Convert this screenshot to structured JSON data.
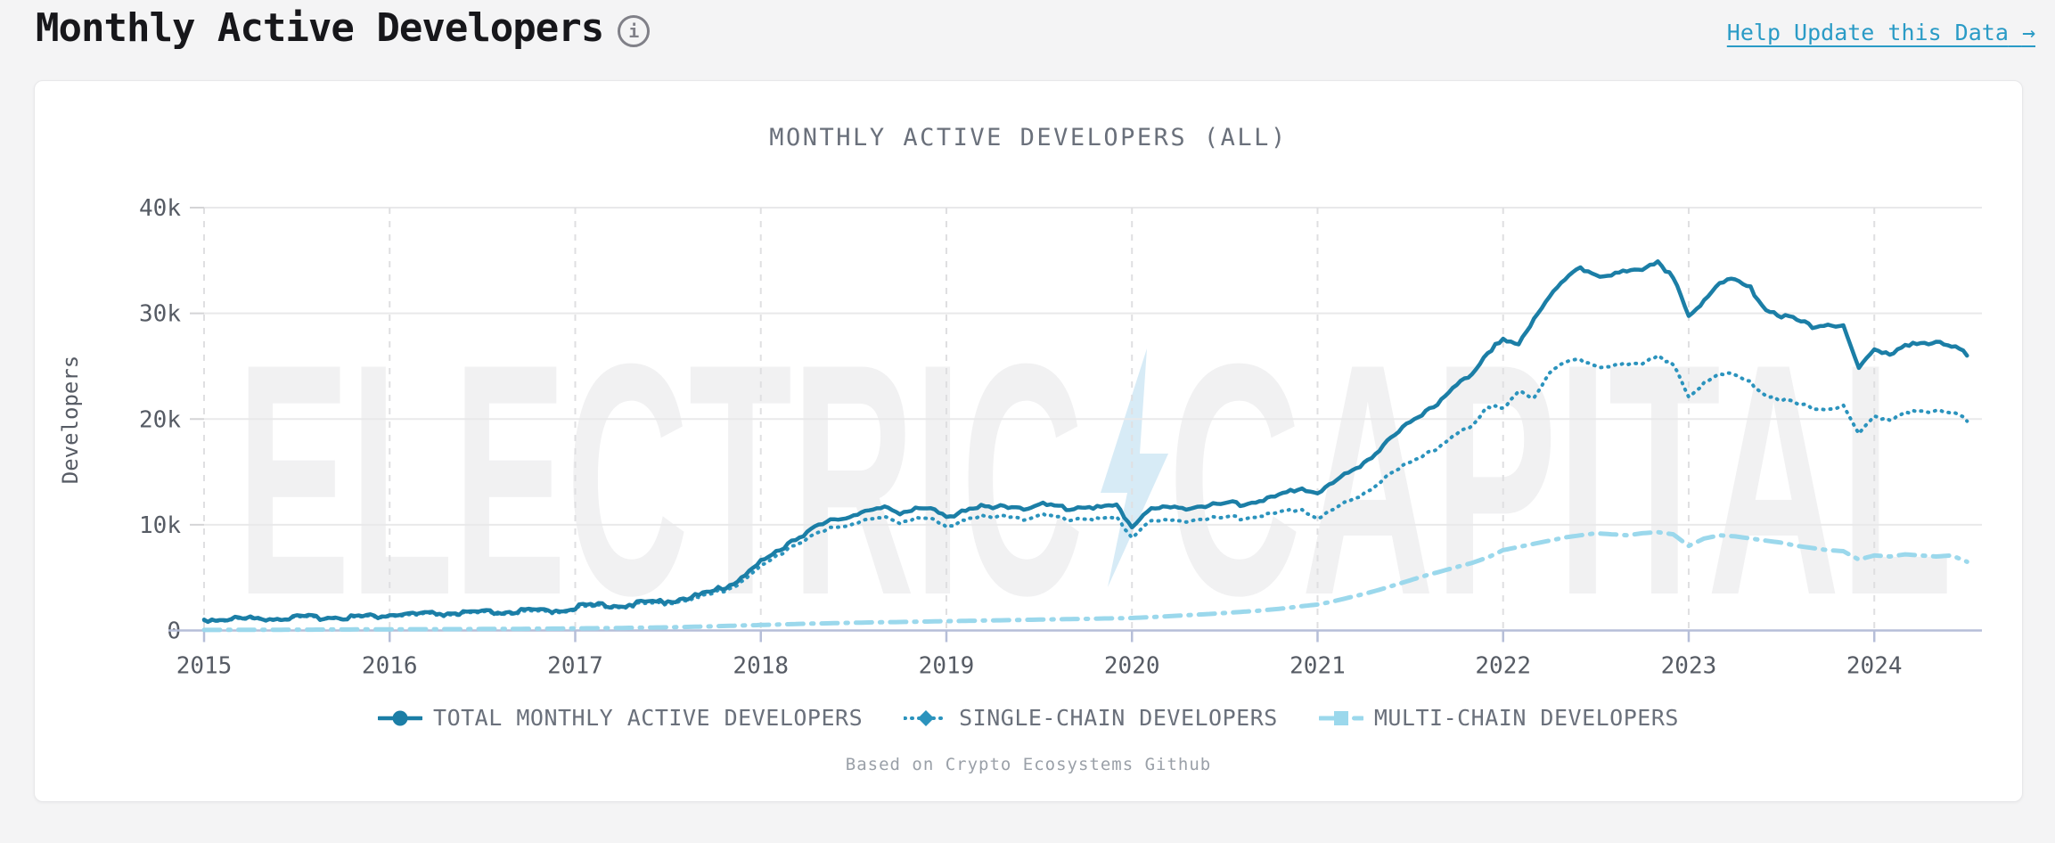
{
  "page": {
    "title": "Monthly Active Developers",
    "help_link": {
      "label": "Help Update this Data",
      "arrow": "→"
    }
  },
  "chart_data": {
    "type": "line",
    "title": "MONTHLY ACTIVE DEVELOPERS (ALL)",
    "ylabel": "Developers",
    "xlabel": "",
    "caption": "Based on Crypto Ecosystems Github",
    "watermark": {
      "left": "ELECTRIC",
      "right": "CAPITAL",
      "bolt": "lightning-bolt"
    },
    "legend_position": "bottom",
    "grid": {
      "horizontal_solid": true,
      "vertical_dashed": true
    },
    "x_start_year": 2015,
    "points_per_year": 12,
    "x_axis": {
      "range": [
        2015,
        2024.58
      ],
      "ticks": [
        2015,
        2016,
        2017,
        2018,
        2019,
        2020,
        2021,
        2022,
        2023,
        2024
      ]
    },
    "y_axis": {
      "range": [
        0,
        40000
      ],
      "unit": "developers",
      "ticks": [
        {
          "value": 0,
          "label": "0"
        },
        {
          "value": 10000,
          "label": "10k"
        },
        {
          "value": 20000,
          "label": "20k"
        },
        {
          "value": 30000,
          "label": "30k"
        },
        {
          "value": 40000,
          "label": "40k"
        }
      ]
    },
    "colors": {
      "axis": "#b6bed8",
      "grid": "#e9e9ea",
      "grid_dashed": "#dfdfe1",
      "tick_text": "#565b64"
    },
    "series": [
      {
        "name": "TOTAL MONTHLY ACTIVE DEVELOPERS",
        "color": "#1b7ea6",
        "style": "solid",
        "marker": "circle",
        "width": 4.5,
        "jitter": 3,
        "values": [
          900,
          950,
          1000,
          1000,
          1050,
          1050,
          1100,
          1100,
          1150,
          1150,
          1200,
          1200,
          1350,
          1400,
          1400,
          1450,
          1500,
          1500,
          1550,
          1600,
          1650,
          1700,
          1750,
          1800,
          2100,
          2200,
          2250,
          2300,
          2400,
          2550,
          2700,
          2900,
          3200,
          3600,
          4200,
          5200,
          6300,
          7300,
          8400,
          9200,
          9900,
          10400,
          10900,
          11200,
          11400,
          11100,
          11500,
          11300,
          10500,
          11300,
          11600,
          11400,
          11700,
          11500,
          11800,
          11600,
          11400,
          11700,
          11500,
          11600,
          9800,
          11200,
          11500,
          11400,
          11700,
          11600,
          11900,
          11800,
          12100,
          12400,
          12800,
          13400,
          12900,
          13800,
          14800,
          15800,
          17000,
          18300,
          19700,
          20700,
          21700,
          23000,
          24300,
          26300,
          27300,
          26900,
          29500,
          31500,
          33000,
          34200,
          33600,
          33400,
          33800,
          34200,
          34900,
          33200,
          29400,
          31300,
          32800,
          33000,
          32200,
          30300,
          29700,
          29200,
          28700,
          28900,
          28500,
          24700,
          26500,
          26100,
          26700,
          27000,
          27300,
          26900,
          26000
        ]
      },
      {
        "name": "SINGLE-CHAIN DEVELOPERS",
        "color": "#2b93bd",
        "style": "dotted",
        "marker": "diamond",
        "width": 4,
        "jitter": 2.5,
        "values": [
          850,
          900,
          950,
          950,
          1000,
          1000,
          1050,
          1050,
          1100,
          1100,
          1150,
          1150,
          1300,
          1300,
          1350,
          1400,
          1400,
          1450,
          1500,
          1500,
          1550,
          1600,
          1650,
          1700,
          2000,
          2100,
          2150,
          2200,
          2300,
          2400,
          2550,
          2750,
          3000,
          3400,
          3900,
          4800,
          5900,
          6900,
          7900,
          8600,
          9200,
          9700,
          10100,
          10400,
          10500,
          10200,
          10600,
          10400,
          9600,
          10400,
          10700,
          10500,
          10800,
          10500,
          10800,
          10600,
          10400,
          10600,
          10400,
          10500,
          8800,
          10100,
          10300,
          10200,
          10500,
          10400,
          10600,
          10500,
          10700,
          10900,
          11100,
          11400,
          10500,
          11300,
          12100,
          12900,
          13900,
          14900,
          15900,
          16700,
          17400,
          18400,
          19400,
          21200,
          20800,
          22500,
          22000,
          24300,
          25200,
          25500,
          25000,
          24800,
          25000,
          25300,
          26000,
          25000,
          21800,
          23500,
          24200,
          24000,
          23300,
          22200,
          21800,
          21300,
          21000,
          20900,
          21000,
          18500,
          20200,
          19900,
          20400,
          20600,
          20800,
          20600,
          19800
        ]
      },
      {
        "name": "MULTI-CHAIN DEVELOPERS",
        "color": "#9bd8ec",
        "style": "dashdot",
        "marker": "square",
        "width": 5,
        "jitter": 0,
        "values": [
          50,
          50,
          60,
          60,
          70,
          70,
          80,
          80,
          90,
          90,
          100,
          100,
          110,
          110,
          120,
          120,
          130,
          130,
          140,
          150,
          150,
          160,
          170,
          180,
          200,
          210,
          220,
          240,
          260,
          280,
          300,
          330,
          360,
          400,
          440,
          480,
          520,
          560,
          600,
          640,
          670,
          700,
          730,
          760,
          780,
          800,
          830,
          850,
          880,
          900,
          930,
          950,
          980,
          1000,
          1030,
          1050,
          1080,
          1100,
          1130,
          1150,
          1180,
          1250,
          1320,
          1400,
          1480,
          1560,
          1650,
          1750,
          1850,
          1980,
          2120,
          2300,
          2450,
          2750,
          3100,
          3450,
          3850,
          4300,
          4750,
          5200,
          5600,
          6000,
          6400,
          6900,
          7600,
          7900,
          8200,
          8500,
          8800,
          9000,
          9200,
          9100,
          9000,
          9200,
          9300,
          9100,
          8000,
          8700,
          9000,
          8900,
          8700,
          8500,
          8300,
          8000,
          7800,
          7600,
          7500,
          6700,
          7100,
          7000,
          7200,
          7100,
          7000,
          7100,
          6500
        ]
      }
    ]
  }
}
